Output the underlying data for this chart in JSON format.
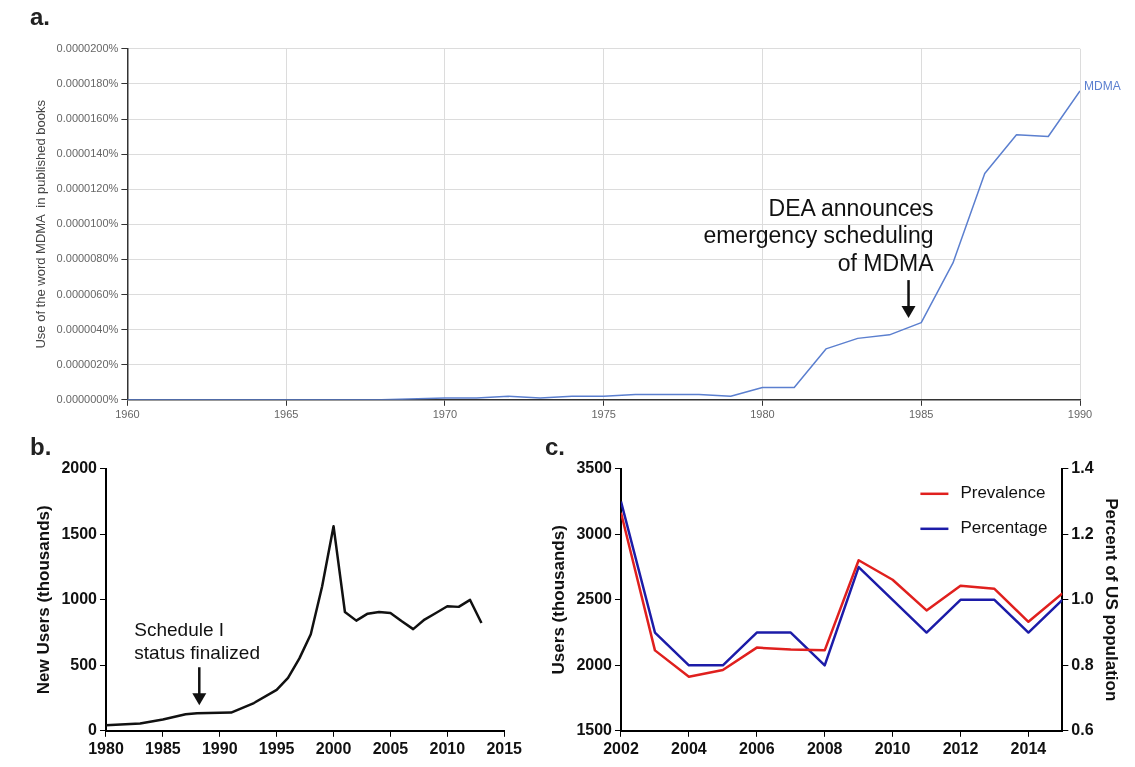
{
  "chart_data": [
    {
      "type": "line",
      "title": "a.",
      "ylabel": "Use of the word MDMA  in published books",
      "grid": true,
      "x": [
        1960,
        1962,
        1964,
        1966,
        1968,
        1970,
        1971,
        1972,
        1973,
        1974,
        1975,
        1976,
        1977,
        1978,
        1979,
        1980,
        1981,
        1982,
        1983,
        1984,
        1985,
        1986,
        1987,
        1988,
        1989,
        1990
      ],
      "series": [
        {
          "name": "MDMA",
          "color": "#5b7fcf",
          "values": [
            0,
            0,
            0,
            0,
            0,
            1e-07,
            1e-07,
            2e-07,
            1e-07,
            2e-07,
            2e-07,
            3e-07,
            3e-07,
            3e-07,
            2e-07,
            7e-07,
            7e-07,
            2.9e-06,
            3.5e-06,
            3.7e-06,
            4.4e-06,
            7.8e-06,
            1.29e-05,
            1.51e-05,
            1.5e-05,
            1.76e-05
          ]
        }
      ],
      "xlim": [
        1960,
        1990
      ],
      "xticks": [
        1960,
        1965,
        1970,
        1975,
        1980,
        1985,
        1990
      ],
      "ylim": [
        0,
        2e-05
      ],
      "yticks": [
        {
          "value": 0,
          "label": "0.0000000%"
        },
        {
          "value": 2e-06,
          "label": "0.0000020%"
        },
        {
          "value": 4e-06,
          "label": "0.0000040%"
        },
        {
          "value": 6e-06,
          "label": "0.0000060%"
        },
        {
          "value": 8e-06,
          "label": "0.0000080%"
        },
        {
          "value": 1e-05,
          "label": "0.0000100%"
        },
        {
          "value": 1.2e-05,
          "label": "0.0000120%"
        },
        {
          "value": 1.4e-05,
          "label": "0.0000140%"
        },
        {
          "value": 1.6e-05,
          "label": "0.0000160%"
        },
        {
          "value": 1.8e-05,
          "label": "0.0000180%"
        },
        {
          "value": 2e-05,
          "label": "0.0000200%"
        }
      ],
      "annotations": [
        {
          "text": "DEA announces\nemergency scheduling\nof MDMA",
          "x": 1984.6,
          "y": 4.2e-06
        }
      ]
    },
    {
      "type": "line",
      "title": "b.",
      "ylabel": "New Users (thousands)",
      "x": [
        1980,
        1983,
        1985,
        1987,
        1988,
        1991,
        1993,
        1995,
        1996,
        1997,
        1998,
        1999,
        2000,
        2001,
        2002,
        2003,
        2004,
        2005,
        2006,
        2007,
        2008,
        2009,
        2010,
        2011,
        2012,
        2013
      ],
      "series": [
        {
          "color": "#111111",
          "values": [
            42,
            55,
            86,
            126,
            134,
            139,
            212,
            312,
            404,
            553,
            737,
            1103,
            1562,
            907,
            841,
            894,
            907,
            899,
            836,
            776,
            849,
            899,
            951,
            946,
            999,
            823
          ]
        }
      ],
      "xlim": [
        1980,
        2015
      ],
      "xticks": [
        1980,
        1985,
        1990,
        1995,
        2000,
        2005,
        2010,
        2015
      ],
      "ylim": [
        0,
        2000
      ],
      "yticks": [
        0,
        500,
        1000,
        1500,
        2000
      ],
      "annotations": [
        {
          "text": "Schedule I\nstatus finalized",
          "x": 1988.2,
          "y": 134
        }
      ]
    },
    {
      "type": "line",
      "title": "c.",
      "ylabel": "Users (thousands)",
      "y2label": "Percent of US population",
      "legend": "top right",
      "x": [
        2002,
        2003,
        2004,
        2005,
        2006,
        2007,
        2008,
        2009,
        2010,
        2011,
        2012,
        2013,
        2014,
        2015
      ],
      "series": [
        {
          "name": "Prevalence",
          "color": "#e0201e",
          "values": [
            3165,
            2114,
            1913,
            1964,
            2135,
            2120,
            2114,
            2802,
            2653,
            2419,
            2608,
            2584,
            2332,
            2548
          ]
        },
        {
          "name": "Percentage",
          "color": "#1c1ca8",
          "axis": "y2",
          "values": [
            1.3,
            0.9,
            0.8,
            0.8,
            0.9,
            0.9,
            0.8,
            1.1,
            1.0,
            0.9,
            1.0,
            1.0,
            0.9,
            1.0
          ]
        }
      ],
      "xlim": [
        2002,
        2015
      ],
      "xticks": [
        2002,
        2004,
        2006,
        2008,
        2010,
        2012,
        2014
      ],
      "ylim": [
        1500,
        3500
      ],
      "yticks": [
        1500,
        2000,
        2500,
        3000,
        3500
      ],
      "y2lim": [
        0.6,
        1.4
      ],
      "y2ticks": [
        {
          "value": 0.6,
          "label": "0.6"
        },
        {
          "value": 0.8,
          "label": "0.8"
        },
        {
          "value": 1.0,
          "label": "1.0"
        },
        {
          "value": 1.2,
          "label": "1.2"
        },
        {
          "value": 1.4,
          "label": "1.4"
        }
      ]
    }
  ]
}
